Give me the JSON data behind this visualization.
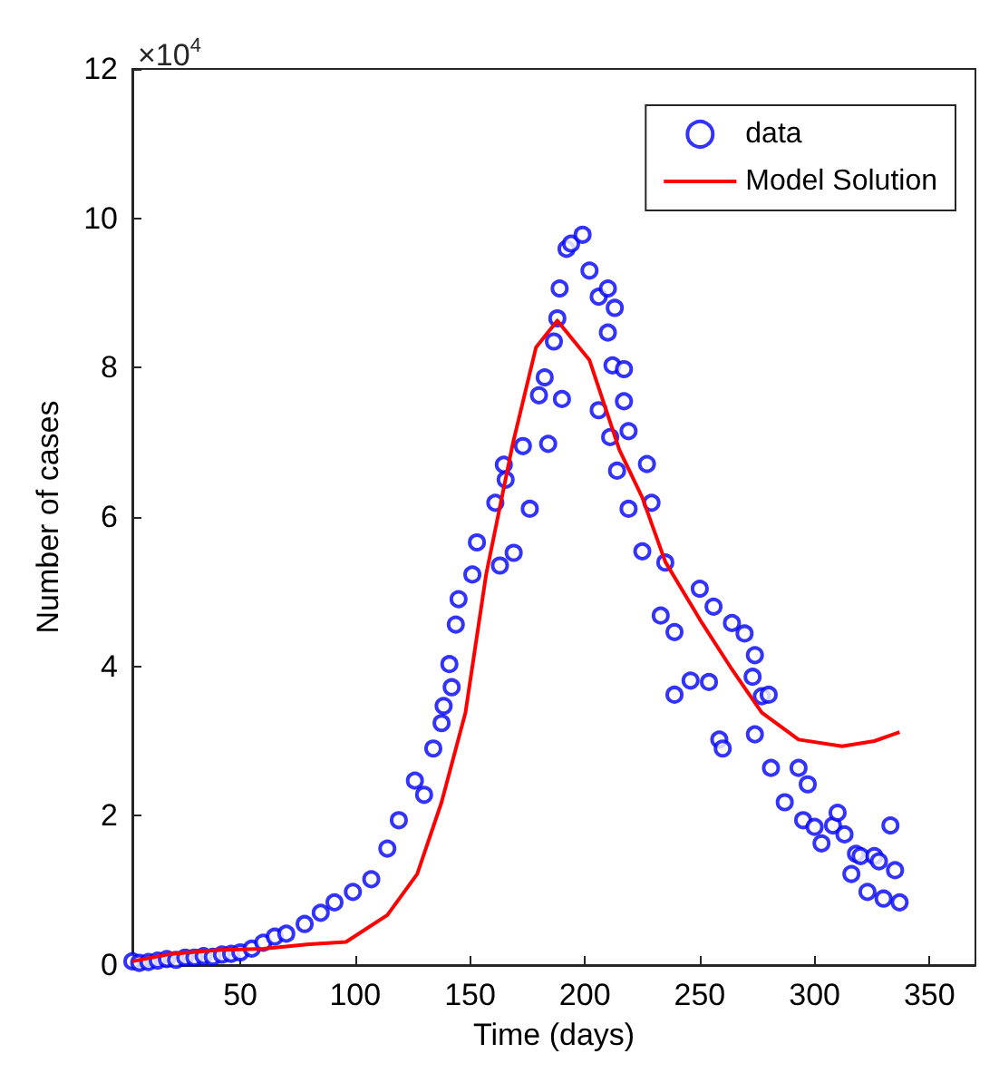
{
  "chart_data": {
    "type": "scatter",
    "xlabel": "Time (days)",
    "ylabel": "Number of cases",
    "annotations": [
      "×10$^{4}$"
    ],
    "xlim": [
      3,
      370
    ],
    "xticks": [
      50,
      100,
      150,
      200,
      250,
      300,
      350
    ],
    "ylim": [
      0,
      12
    ],
    "yticks": [
      0,
      2,
      4,
      6,
      8,
      10,
      12
    ],
    "grid": false,
    "legend": "top right",
    "series": [
      {
        "name": "data",
        "marker": "circle",
        "color": "#0000ff",
        "x": [
          3,
          6,
          10,
          14,
          18,
          22,
          26,
          30,
          34,
          38,
          42,
          46,
          50,
          55,
          60,
          65,
          70,
          78,
          85,
          91,
          99,
          107,
          114,
          119,
          126,
          130,
          134,
          137.6,
          138.5,
          141,
          142,
          143.8,
          145,
          151,
          153,
          161,
          163,
          164.7,
          165.5,
          169,
          173,
          176,
          180,
          182.5,
          184,
          186.5,
          188,
          189,
          190,
          192,
          194,
          199,
          202,
          206,
          206,
          210,
          210,
          211,
          212,
          213,
          214,
          217,
          217,
          219,
          219,
          225,
          227,
          229,
          233,
          235,
          239,
          239,
          246,
          250,
          254,
          256,
          258.5,
          260,
          264,
          269.5,
          273,
          274,
          274,
          277,
          280,
          281,
          287,
          293,
          295,
          297,
          300,
          303,
          308,
          310,
          313,
          316,
          318,
          320,
          323,
          326,
          328,
          330,
          333,
          335,
          337
        ],
        "values": [
          0.05,
          0.03,
          0.04,
          0.06,
          0.08,
          0.07,
          0.1,
          0.1,
          0.12,
          0.11,
          0.14,
          0.15,
          0.17,
          0.22,
          0.3,
          0.38,
          0.42,
          0.55,
          0.7,
          0.84,
          0.98,
          1.15,
          1.56,
          1.94,
          2.47,
          2.28,
          2.9,
          3.24,
          3.47,
          4.03,
          3.72,
          4.56,
          4.9,
          5.23,
          5.66,
          6.19,
          5.35,
          6.7,
          6.5,
          5.52,
          6.95,
          6.11,
          7.63,
          7.87,
          6.98,
          8.35,
          8.66,
          9.06,
          7.58,
          9.59,
          9.66,
          9.78,
          9.3,
          8.95,
          7.43,
          9.06,
          8.47,
          7.07,
          8.03,
          8.8,
          6.62,
          7.98,
          7.55,
          7.15,
          6.11,
          5.54,
          6.71,
          6.19,
          4.68,
          5.39,
          4.46,
          3.62,
          3.81,
          5.04,
          3.79,
          4.8,
          3.02,
          2.9,
          4.58,
          4.44,
          3.86,
          4.15,
          3.09,
          3.6,
          3.62,
          2.64,
          2.18,
          2.64,
          1.94,
          2.42,
          1.85,
          1.63,
          1.87,
          2.04,
          1.75,
          1.22,
          1.49,
          1.46,
          0.98,
          1.46,
          1.39,
          0.89,
          1.87,
          1.27,
          0.84
        ]
      },
      {
        "name": "Model Solution",
        "type": "line",
        "marker": "none",
        "line_style": "solid",
        "color": "#ff0000",
        "x": [
          3,
          20,
          40,
          60,
          80,
          96,
          114,
          127,
          137.6,
          148,
          157,
          168.6,
          178.7,
          188,
          202,
          215,
          225,
          235,
          251,
          264,
          277,
          293,
          312,
          326,
          337
        ],
        "values": [
          0.05,
          0.15,
          0.2,
          0.22,
          0.28,
          0.31,
          0.67,
          1.22,
          2.18,
          3.38,
          5.23,
          6.98,
          8.27,
          8.63,
          8.1,
          6.9,
          6.26,
          5.4,
          4.58,
          3.96,
          3.38,
          3.02,
          2.93,
          3.0,
          3.12
        ]
      }
    ]
  }
}
